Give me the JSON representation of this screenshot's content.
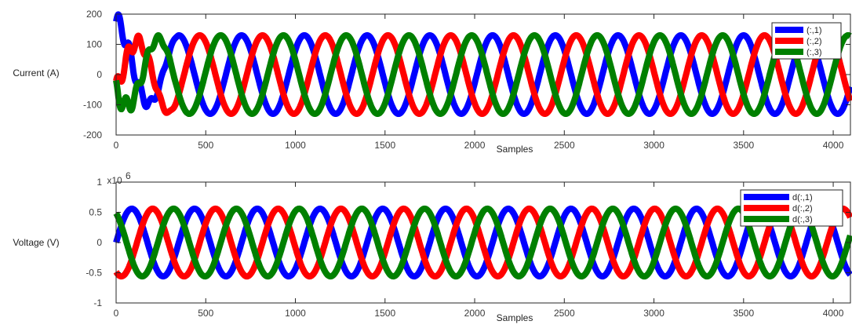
{
  "chart_data": [
    {
      "type": "line",
      "title": "",
      "xlabel": "Samples",
      "ylabel": "Current (A)",
      "xlim": [
        0,
        4096
      ],
      "ylim": [
        -200,
        200
      ],
      "xticks": [
        0,
        500,
        1000,
        1500,
        2000,
        2500,
        3000,
        3500,
        4000
      ],
      "yticks": [
        200,
        100,
        0,
        -100,
        -200
      ],
      "xtick_labels": [
        "0",
        "500",
        "1000",
        "1500",
        "2000",
        "2500",
        "3000",
        "3500",
        "4000"
      ],
      "ytick_labels": [
        "200",
        "100",
        "0",
        "-100",
        "-200"
      ],
      "y_exponent_label": "",
      "legend_position": "top-right",
      "grid": false,
      "waveform": {
        "amplitude": 130,
        "period_samples": 350,
        "initial_transient_samples": 350
      },
      "series": [
        {
          "name": "(:,1)",
          "color": "#0000ff",
          "phase_deg": 90
        },
        {
          "name": "(:,2)",
          "color": "#ff0000",
          "phase_deg": -30
        },
        {
          "name": "(:,3)",
          "color": "#008000",
          "phase_deg": 210
        }
      ]
    },
    {
      "type": "line",
      "title": "",
      "xlabel": "Samples",
      "ylabel": "Voltage (V)",
      "xlim": [
        0,
        4096
      ],
      "ylim": [
        -1000000,
        1000000
      ],
      "xticks": [
        0,
        500,
        1000,
        1500,
        2000,
        2500,
        3000,
        3500,
        4000
      ],
      "yticks": [
        1000000,
        500000,
        0,
        -500000,
        -1000000
      ],
      "xtick_labels": [
        "0",
        "500",
        "1000",
        "1500",
        "2000",
        "2500",
        "3000",
        "3500",
        "4000"
      ],
      "ytick_labels": [
        "1",
        "0.5",
        "0",
        "-0.5",
        "-1"
      ],
      "y_exponent_label": "x10",
      "y_exponent_power": "6",
      "legend_position": "top-right",
      "grid": false,
      "waveform": {
        "amplitude": 560000,
        "period_samples": 350,
        "initial_transient_samples": 0
      },
      "series": [
        {
          "name": "d(:,1)",
          "color": "#0000ff",
          "phase_deg": 0
        },
        {
          "name": "d(:,2)",
          "color": "#ff0000",
          "phase_deg": -120
        },
        {
          "name": "d(:,3)",
          "color": "#008000",
          "phase_deg": 120
        }
      ]
    }
  ]
}
